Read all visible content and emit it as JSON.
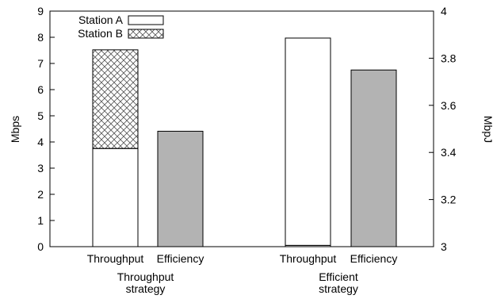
{
  "chart_data": {
    "type": "bar",
    "stacked": true,
    "dual_axis": true,
    "groups": [
      {
        "label_lines": [
          "Throughput",
          "strategy"
        ],
        "bars": [
          "Throughput",
          "Efficiency"
        ]
      },
      {
        "label_lines": [
          "Efficient",
          "strategy"
        ],
        "bars": [
          "Throughput",
          "Efficiency"
        ]
      }
    ],
    "series": [
      {
        "name": "Station A",
        "axis": "left",
        "values": [
          3.75,
          0.05
        ],
        "fill": "white"
      },
      {
        "name": "Station B",
        "axis": "left",
        "values": [
          3.77,
          7.92
        ],
        "fill": "crosshatch"
      },
      {
        "name": "",
        "axis": "right",
        "values": [
          3.49,
          3.75
        ],
        "fill": "#b3b3b3"
      }
    ],
    "notes": "Throughput bars are stacked Station A (bottom) + Station B (top); Efficiency bars use right axis.",
    "ylabel_left": "Mbps",
    "ylabel_right": "MbpJ",
    "ylim_left": [
      0,
      9
    ],
    "ylim_right": [
      3,
      4
    ],
    "yticks_left": [
      "0",
      "1",
      "2",
      "3",
      "4",
      "5",
      "6",
      "7",
      "8",
      "9"
    ],
    "yticks_right": [
      "3",
      "3.2",
      "3.4",
      "3.6",
      "3.8",
      "4"
    ],
    "legend": {
      "position": "top-left",
      "entries": [
        "Station A",
        "Station B"
      ]
    },
    "grid": false,
    "colors": {
      "bar_right": "#b3b3b3",
      "edge": "#000000"
    }
  }
}
